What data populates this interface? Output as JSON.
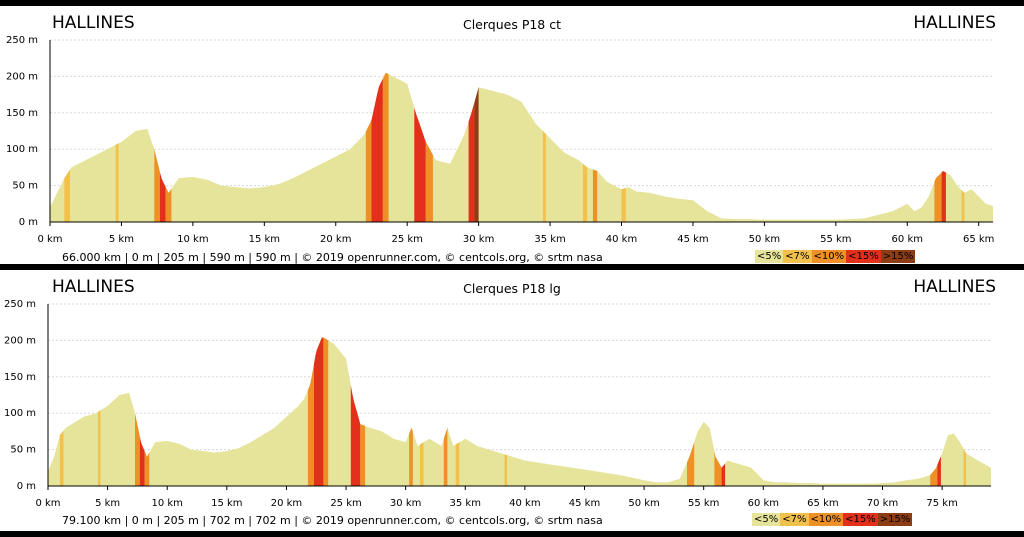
{
  "chart_data": [
    {
      "type": "area",
      "title": "Clerques P18 ct",
      "start_label": "HALLINES",
      "end_label": "HALLINES",
      "xlim": [
        0,
        66
      ],
      "ylim": [
        0,
        250
      ],
      "x_ticks": [
        0,
        5,
        10,
        15,
        20,
        25,
        30,
        35,
        40,
        45,
        50,
        55,
        60,
        65
      ],
      "x_tick_labels": [
        "0 km",
        "5 km",
        "10 km",
        "15 km",
        "20 km",
        "25 km",
        "30 km",
        "35 km",
        "40 km",
        "45 km",
        "50 km",
        "55 km",
        "60 km",
        "65 km"
      ],
      "y_ticks": [
        0,
        50,
        100,
        150,
        200,
        250
      ],
      "y_tick_labels": [
        "0 m",
        "50 m",
        "100 m",
        "150 m",
        "200 m",
        "250 m"
      ],
      "grid": true,
      "x": [
        0,
        0.5,
        1,
        1.5,
        2,
        3,
        4,
        5,
        6,
        6.8,
        7.3,
        7.8,
        8.3,
        9,
        10,
        11,
        12,
        13,
        14,
        15,
        16,
        17,
        18,
        19,
        20,
        21,
        22,
        22.5,
        23,
        23.5,
        24,
        25,
        25.6,
        26.3,
        27,
        28,
        29,
        29.5,
        30,
        31,
        32,
        33,
        34,
        35,
        36,
        37,
        37.6,
        38.3,
        39,
        40,
        40.5,
        41,
        42,
        43,
        44,
        45,
        46,
        47,
        48,
        49,
        50,
        51,
        52,
        53,
        54,
        55,
        56,
        57,
        58,
        59,
        60,
        60.5,
        61,
        61.5,
        62,
        62.5,
        63,
        63.5,
        64,
        64.5,
        65,
        65.5,
        66
      ],
      "elevation": [
        20,
        40,
        60,
        75,
        80,
        90,
        100,
        110,
        125,
        128,
        100,
        60,
        40,
        60,
        62,
        58,
        50,
        48,
        46,
        48,
        52,
        60,
        70,
        80,
        90,
        100,
        120,
        140,
        185,
        205,
        200,
        190,
        150,
        110,
        85,
        80,
        120,
        150,
        185,
        180,
        175,
        165,
        135,
        115,
        95,
        85,
        75,
        70,
        55,
        45,
        48,
        42,
        40,
        35,
        32,
        30,
        15,
        5,
        4,
        4,
        3,
        3,
        3,
        3,
        3,
        3,
        4,
        5,
        10,
        15,
        25,
        15,
        20,
        35,
        60,
        70,
        65,
        50,
        40,
        45,
        35,
        25,
        22
      ],
      "series_colors": [
        "#e6e49a",
        "#f2c14b",
        "#ee9025",
        "#e2301a",
        "#8c3d15"
      ],
      "steep_segments": [
        {
          "from": 1,
          "to": 1.4,
          "grade": "<7%"
        },
        {
          "from": 4.6,
          "to": 4.8,
          "grade": "<7%"
        },
        {
          "from": 7.3,
          "to": 7.7,
          "grade": "<10%"
        },
        {
          "from": 7.7,
          "to": 8.1,
          "grade": "<15%"
        },
        {
          "from": 8.1,
          "to": 8.5,
          "grade": "<10%"
        },
        {
          "from": 22.1,
          "to": 22.5,
          "grade": "<10%"
        },
        {
          "from": 22.5,
          "to": 23.3,
          "grade": "<15%"
        },
        {
          "from": 23.3,
          "to": 23.7,
          "grade": "<10%"
        },
        {
          "from": 25.5,
          "to": 26.3,
          "grade": "<15%"
        },
        {
          "from": 26.3,
          "to": 26.8,
          "grade": "<10%"
        },
        {
          "from": 29.3,
          "to": 29.7,
          "grade": "<15%"
        },
        {
          "from": 29.7,
          "to": 30.0,
          "grade": ">15%"
        },
        {
          "from": 34.5,
          "to": 34.7,
          "grade": "<7%"
        },
        {
          "from": 37.3,
          "to": 37.6,
          "grade": "<7%"
        },
        {
          "from": 38.0,
          "to": 38.3,
          "grade": "<10%"
        },
        {
          "from": 40.0,
          "to": 40.3,
          "grade": "<7%"
        },
        {
          "from": 61.9,
          "to": 62.4,
          "grade": "<10%"
        },
        {
          "from": 62.4,
          "to": 62.7,
          "grade": "<15%"
        },
        {
          "from": 63.8,
          "to": 64.0,
          "grade": "<7%"
        }
      ],
      "footer": "66.000 km |     0 m |     205 m |     590 m |     590 m | © 2019 openrunner.com, © centcols.org, © srtm nasa",
      "legend": [
        "<5%",
        "<7%",
        "<10%",
        "<15%",
        ">15%"
      ]
    },
    {
      "type": "area",
      "title": "Clerques P18 lg",
      "start_label": "HALLINES",
      "end_label": "HALLINES",
      "xlim": [
        0,
        79.1
      ],
      "ylim": [
        0,
        250
      ],
      "x_ticks": [
        0,
        5,
        10,
        15,
        20,
        25,
        30,
        35,
        40,
        45,
        50,
        55,
        60,
        65,
        70,
        75
      ],
      "x_tick_labels": [
        "0 km",
        "5 km",
        "10 km",
        "15 km",
        "20 km",
        "25 km",
        "30 km",
        "35 km",
        "40 km",
        "45 km",
        "50 km",
        "55 km",
        "60 km",
        "65 km",
        "70 km",
        "75 km"
      ],
      "y_ticks": [
        0,
        50,
        100,
        150,
        200,
        250
      ],
      "y_tick_labels": [
        "0 m",
        "50 m",
        "100 m",
        "150 m",
        "200 m",
        "250 m"
      ],
      "grid": true,
      "x": [
        0,
        0.5,
        1,
        1.5,
        2,
        3,
        4,
        5,
        6,
        6.8,
        7.3,
        7.8,
        8.3,
        9,
        10,
        11,
        12,
        13,
        14,
        15,
        16,
        17,
        18,
        19,
        20,
        21,
        21.5,
        22,
        22.5,
        23,
        23.5,
        24,
        25,
        25.6,
        26.2,
        27,
        28,
        29,
        30,
        30.5,
        31,
        31.5,
        32,
        33,
        33.5,
        34,
        35,
        36,
        37,
        38,
        39,
        40,
        42,
        44,
        46,
        48,
        50,
        51,
        52,
        53,
        53.8,
        54.5,
        55,
        55.5,
        56,
        56.5,
        57,
        58,
        59,
        60,
        61,
        62,
        63,
        64,
        65,
        66,
        67,
        68,
        69,
        70,
        71,
        72,
        73,
        74,
        74.5,
        75,
        75.5,
        76,
        76.5,
        77,
        78,
        79.1
      ],
      "elevation": [
        20,
        40,
        70,
        80,
        85,
        95,
        100,
        110,
        125,
        128,
        100,
        60,
        40,
        60,
        62,
        58,
        50,
        48,
        46,
        48,
        52,
        60,
        70,
        80,
        95,
        110,
        120,
        140,
        185,
        205,
        200,
        195,
        175,
        120,
        85,
        80,
        75,
        65,
        60,
        80,
        55,
        60,
        65,
        55,
        80,
        55,
        65,
        55,
        50,
        45,
        40,
        35,
        30,
        25,
        20,
        15,
        8,
        5,
        5,
        10,
        40,
        75,
        88,
        80,
        40,
        25,
        35,
        30,
        25,
        8,
        5,
        5,
        4,
        4,
        3,
        3,
        3,
        3,
        3,
        4,
        5,
        8,
        10,
        15,
        25,
        45,
        70,
        72,
        60,
        45,
        35,
        25
      ],
      "series_colors": [
        "#e6e49a",
        "#f2c14b",
        "#ee9025",
        "#e2301a",
        "#8c3d15"
      ],
      "steep_segments": [
        {
          "from": 1,
          "to": 1.3,
          "grade": "<7%"
        },
        {
          "from": 4.2,
          "to": 4.4,
          "grade": "<7%"
        },
        {
          "from": 7.3,
          "to": 7.7,
          "grade": "<10%"
        },
        {
          "from": 7.7,
          "to": 8.1,
          "grade": "<15%"
        },
        {
          "from": 8.1,
          "to": 8.5,
          "grade": "<10%"
        },
        {
          "from": 21.8,
          "to": 22.3,
          "grade": "<10%"
        },
        {
          "from": 22.3,
          "to": 23.1,
          "grade": "<15%"
        },
        {
          "from": 23.1,
          "to": 23.5,
          "grade": "<10%"
        },
        {
          "from": 25.4,
          "to": 26.2,
          "grade": "<15%"
        },
        {
          "from": 26.2,
          "to": 26.6,
          "grade": "<10%"
        },
        {
          "from": 30.3,
          "to": 30.6,
          "grade": "<10%"
        },
        {
          "from": 31.2,
          "to": 31.5,
          "grade": "<7%"
        },
        {
          "from": 33.2,
          "to": 33.5,
          "grade": "<10%"
        },
        {
          "from": 34.2,
          "to": 34.5,
          "grade": "<7%"
        },
        {
          "from": 38.3,
          "to": 38.5,
          "grade": "<7%"
        },
        {
          "from": 53.6,
          "to": 54.2,
          "grade": "<10%"
        },
        {
          "from": 55.9,
          "to": 56.5,
          "grade": "<10%"
        },
        {
          "from": 56.5,
          "to": 56.8,
          "grade": "<15%"
        },
        {
          "from": 74.0,
          "to": 74.6,
          "grade": "<10%"
        },
        {
          "from": 74.6,
          "to": 74.9,
          "grade": "<15%"
        },
        {
          "from": 76.8,
          "to": 77.0,
          "grade": "<7%"
        }
      ],
      "footer": "79.100 km |     0 m |     205 m |     702 m |     702 m | © 2019 openrunner.com, © centcols.org, © srtm nasa",
      "legend": [
        "<5%",
        "<7%",
        "<10%",
        "<15%",
        ">15%"
      ]
    }
  ]
}
